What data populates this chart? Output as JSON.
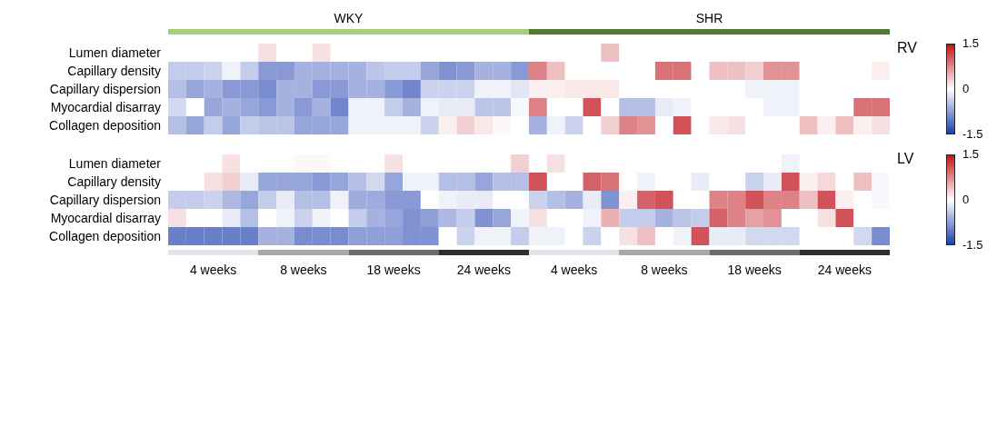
{
  "chart_data": [
    {
      "type": "heatmap",
      "annotations": [
        "WKY",
        "SHR",
        "RV"
      ],
      "categories": [
        null,
        null,
        null,
        null,
        null,
        null,
        null,
        null,
        null,
        null,
        null,
        null,
        null,
        null,
        null,
        null,
        null,
        null,
        null,
        null,
        null,
        null,
        null,
        null,
        null,
        null,
        null,
        null,
        null,
        null,
        null,
        null,
        null,
        null,
        null,
        null,
        null,
        null,
        null,
        null
      ],
      "y_categories": [
        "Lumen diameter",
        "Capillary density",
        "Capillary dispersion",
        "Myocardial disarray",
        "Collagen deposition"
      ],
      "cells": [
        [
          0,
          0,
          0,
          0,
          0,
          0.2,
          0,
          0,
          0.2,
          0,
          0,
          0,
          0,
          0,
          0,
          0,
          0,
          0,
          0,
          0,
          0,
          0,
          0,
          0,
          0.4,
          0,
          0,
          0,
          0,
          0,
          0,
          0,
          0,
          0,
          0,
          0,
          0,
          0,
          0,
          0
        ],
        [
          -0.4,
          -0.4,
          -0.35,
          -0.1,
          -0.4,
          -0.8,
          -0.8,
          -0.6,
          -0.6,
          -0.6,
          -0.6,
          -0.45,
          -0.4,
          -0.4,
          -0.7,
          -0.85,
          -0.8,
          -0.6,
          -0.6,
          -0.8,
          0.8,
          0.4,
          0,
          0,
          0,
          0,
          0,
          0.9,
          0.9,
          0,
          0.4,
          0.4,
          0.3,
          0.7,
          0.7,
          0,
          0,
          0,
          0,
          0.1
        ],
        [
          -0.5,
          -0.7,
          -0.6,
          -0.8,
          -0.8,
          -0.9,
          -0.6,
          -0.6,
          -0.8,
          -0.8,
          -0.6,
          -0.6,
          -0.8,
          -0.95,
          -0.35,
          -0.35,
          -0.35,
          -0.1,
          -0.1,
          -0.2,
          0.1,
          0.1,
          0.15,
          0.15,
          0.15,
          0,
          0,
          0,
          0,
          0,
          0,
          0,
          -0.1,
          -0.1,
          -0.1,
          0,
          0,
          0,
          0,
          0
        ],
        [
          -0.3,
          0,
          -0.7,
          -0.6,
          -0.7,
          -0.8,
          -0.6,
          -0.8,
          -0.6,
          -0.95,
          -0.1,
          -0.1,
          -0.4,
          -0.6,
          -0.1,
          -0.15,
          -0.15,
          -0.45,
          -0.45,
          -0.05,
          0.8,
          0,
          0,
          1.1,
          0,
          -0.5,
          -0.5,
          -0.15,
          -0.1,
          0,
          0,
          0,
          0,
          -0.1,
          -0.1,
          0,
          0,
          0,
          0.9,
          0.9
        ],
        [
          -0.5,
          -0.7,
          -0.4,
          -0.7,
          -0.4,
          -0.45,
          -0.45,
          -0.7,
          -0.7,
          -0.7,
          -0.1,
          -0.1,
          -0.1,
          -0.1,
          -0.35,
          0.1,
          0.3,
          0.15,
          0.05,
          0,
          -0.6,
          -0.1,
          -0.35,
          0,
          0.3,
          0.8,
          0.7,
          0,
          1.1,
          0,
          0.15,
          0.2,
          0,
          0,
          0,
          0.4,
          0.1,
          0.4,
          0.1,
          0.2
        ]
      ],
      "clim": [
        -1.5,
        1.5
      ],
      "cticks": [
        1.5,
        0,
        -1.5
      ]
    },
    {
      "type": "heatmap",
      "annotations": [
        "LV"
      ],
      "categories": [
        null,
        null,
        "4 weeks",
        null,
        null,
        null,
        null,
        "8 weeks",
        null,
        null,
        null,
        null,
        "18 weeks",
        null,
        null,
        null,
        null,
        "24 weeks",
        null,
        null,
        null,
        null,
        "4 weeks",
        null,
        null,
        null,
        null,
        "8 weeks",
        null,
        null,
        null,
        null,
        "18 weeks",
        null,
        null,
        null,
        null,
        "24 weeks",
        null,
        null
      ],
      "y_categories": [
        "Lumen diameter",
        "Capillary density",
        "Capillary dispersion",
        "Myocardial disarray",
        "Collagen deposition"
      ],
      "cells": [
        [
          0,
          0,
          0,
          0.2,
          0,
          0,
          0,
          0.05,
          0.05,
          0,
          0,
          0,
          0.2,
          0,
          0,
          0,
          0,
          0,
          0,
          0.3,
          0,
          0.2,
          0,
          0,
          0,
          0,
          0,
          0,
          0,
          0,
          0,
          0,
          0,
          0,
          -0.1,
          0,
          0,
          0,
          0,
          0
        ],
        [
          0,
          0,
          0.2,
          0.3,
          -0.15,
          -0.7,
          -0.7,
          -0.7,
          -0.8,
          -0.7,
          -0.5,
          -0.3,
          -0.7,
          -0.1,
          -0.1,
          -0.5,
          -0.5,
          -0.7,
          -0.5,
          -0.5,
          1.1,
          0,
          0,
          1,
          0.9,
          0,
          -0.1,
          0,
          0,
          -0.15,
          0,
          0,
          -0.35,
          -0.15,
          1.1,
          0.1,
          0.25,
          0,
          0.4,
          -0.05
        ],
        [
          -0.4,
          -0.4,
          -0.35,
          -0.55,
          -0.7,
          -0.4,
          -0.15,
          -0.5,
          -0.5,
          -0.1,
          -0.65,
          -0.65,
          -0.8,
          -0.8,
          0,
          -0.1,
          -0.15,
          -0.15,
          0,
          0,
          -0.35,
          -0.5,
          -0.6,
          -0.15,
          -0.85,
          0.1,
          1,
          1.1,
          0,
          0,
          0.8,
          0.8,
          1.1,
          0.8,
          0.8,
          0.4,
          1.1,
          0.1,
          0,
          -0.05
        ],
        [
          0.2,
          0,
          0,
          -0.15,
          -0.5,
          0,
          -0.1,
          -0.35,
          -0.1,
          0,
          -0.4,
          -0.6,
          -0.7,
          -0.85,
          -0.75,
          -0.55,
          -0.4,
          -0.85,
          -0.7,
          -0.1,
          0.2,
          0,
          0,
          -0.1,
          0.5,
          -0.4,
          -0.4,
          -0.6,
          -0.45,
          -0.4,
          1,
          0.8,
          0.6,
          0.7,
          0,
          0,
          0.2,
          1.1,
          0,
          0
        ],
        [
          -1,
          -1,
          -1,
          -1,
          -1,
          -0.6,
          -0.6,
          -0.9,
          -0.9,
          -0.9,
          -0.75,
          -0.75,
          -0.75,
          -0.85,
          -0.85,
          0,
          -0.35,
          -0.1,
          -0.1,
          -0.4,
          -0.1,
          -0.1,
          0,
          -0.35,
          0,
          0.2,
          0.4,
          0,
          -0.1,
          1.1,
          -0.15,
          -0.15,
          -0.3,
          -0.3,
          -0.3,
          0,
          0,
          0,
          -0.3,
          -0.9
        ]
      ],
      "clim": [
        -1.5,
        1.5
      ],
      "cticks": [
        1.5,
        0,
        -1.5
      ]
    }
  ]
}
